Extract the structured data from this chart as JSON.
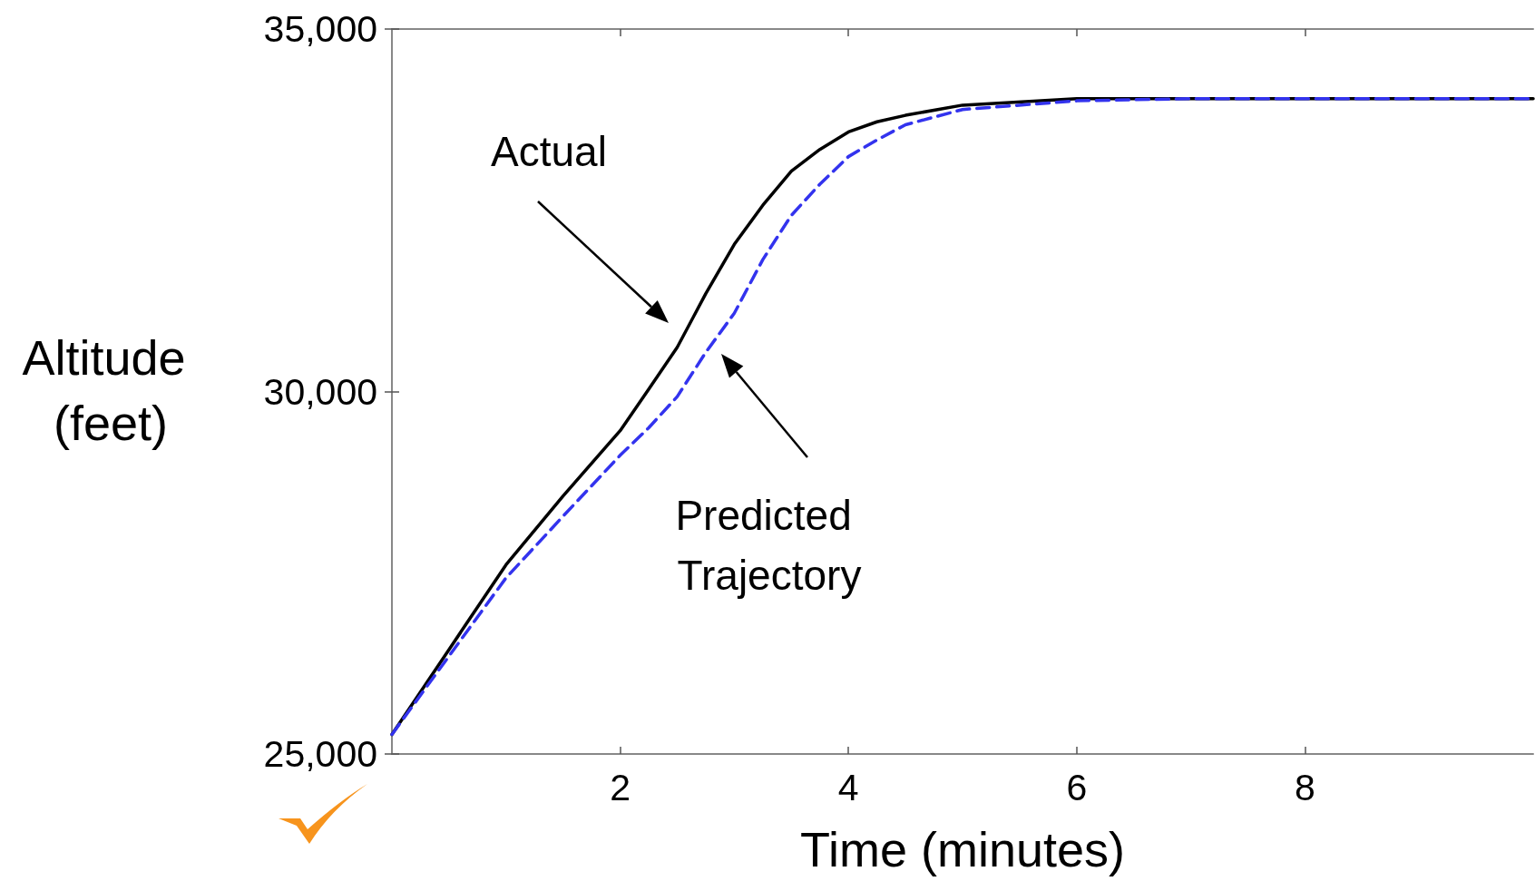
{
  "chart_data": {
    "type": "line",
    "xlabel": "Time (minutes)",
    "ylabel": "Altitude (feet)",
    "xlim": [
      0,
      10
    ],
    "xticks": [
      2,
      4,
      6,
      8
    ],
    "ylim": [
      25000,
      35000
    ],
    "yticks": [
      {
        "value": 25000,
        "label": "25,000"
      },
      {
        "value": 30000,
        "label": "30,000"
      },
      {
        "value": 35000,
        "label": "35,000"
      }
    ],
    "grid": false,
    "marker": "none",
    "series": [
      {
        "color": "#000000",
        "line_style": "solid",
        "x": [
          0,
          0.5,
          1,
          1.5,
          2,
          2.25,
          2.5,
          2.75,
          3,
          3.25,
          3.5,
          3.75,
          4,
          4.25,
          4.5,
          5,
          6,
          7,
          8,
          9,
          10
        ],
        "values": [
          25270,
          26440,
          27610,
          28560,
          29460,
          30030,
          30610,
          31350,
          32030,
          32570,
          33040,
          33340,
          33580,
          33720,
          33810,
          33950,
          34040,
          34040,
          34040,
          34040,
          34040
        ]
      },
      {
        "color": "#3333ee",
        "line_style": "dashed",
        "x": [
          0,
          0.5,
          1,
          1.5,
          2,
          2.25,
          2.5,
          2.75,
          3,
          3.25,
          3.5,
          3.75,
          4,
          4.25,
          4.5,
          5,
          6,
          7,
          8,
          9,
          10
        ],
        "values": [
          25270,
          26350,
          27430,
          28280,
          29120,
          29500,
          29930,
          30540,
          31080,
          31820,
          32430,
          32860,
          33240,
          33470,
          33680,
          33890,
          34010,
          34040,
          34040,
          34040,
          34040
        ]
      }
    ],
    "annotations": [
      "Actual",
      "Predicted Trajectory"
    ]
  }
}
